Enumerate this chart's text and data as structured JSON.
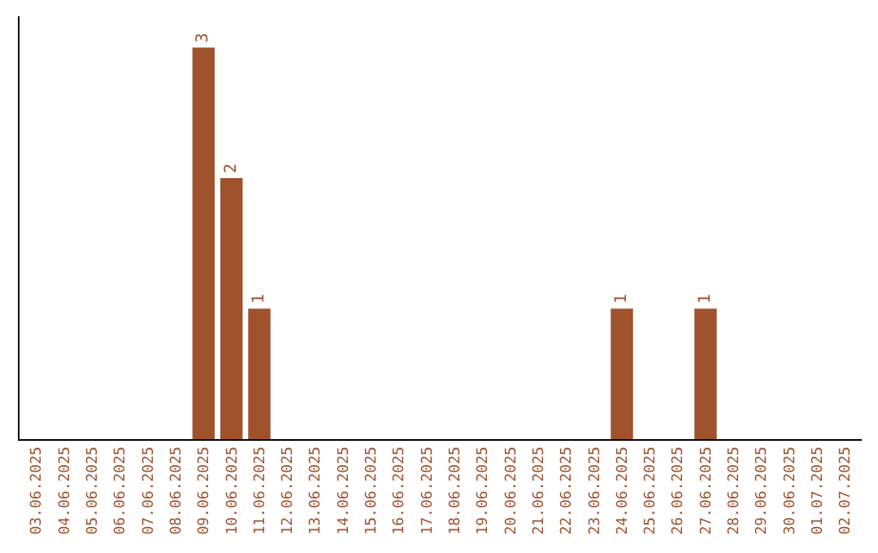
{
  "chart_data": {
    "type": "bar",
    "categories": [
      "03.06.2025",
      "04.06.2025",
      "05.06.2025",
      "06.06.2025",
      "07.06.2025",
      "08.06.2025",
      "09.06.2025",
      "10.06.2025",
      "11.06.2025",
      "12.06.2025",
      "13.06.2025",
      "14.06.2025",
      "15.06.2025",
      "16.06.2025",
      "17.06.2025",
      "18.06.2025",
      "19.06.2025",
      "20.06.2025",
      "21.06.2025",
      "22.06.2025",
      "23.06.2025",
      "24.06.2025",
      "25.06.2025",
      "26.06.2025",
      "27.06.2025",
      "28.06.2025",
      "29.06.2025",
      "30.06.2025",
      "01.07.2025",
      "02.07.2025"
    ],
    "values": [
      0,
      0,
      0,
      0,
      0,
      0,
      3,
      2,
      1,
      0,
      0,
      0,
      0,
      0,
      0,
      0,
      0,
      0,
      0,
      0,
      0,
      1,
      0,
      0,
      1,
      0,
      0,
      0,
      0,
      0
    ],
    "value_labels": [
      null,
      null,
      null,
      null,
      null,
      null,
      "3",
      "2",
      "1",
      null,
      null,
      null,
      null,
      null,
      null,
      null,
      null,
      null,
      null,
      null,
      null,
      "1",
      null,
      null,
      "1",
      null,
      null,
      null,
      null,
      null
    ],
    "color": "#a0522d",
    "tick_labels": "x"
  }
}
